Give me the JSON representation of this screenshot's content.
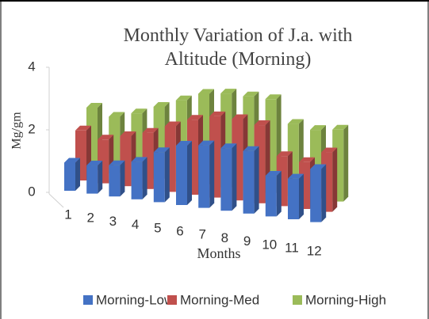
{
  "chart_data": {
    "type": "bar3d",
    "title": "Monthly Variation of J.a. with Altitude (Morning)",
    "x_label": "Months",
    "y_label": "Mg/gm",
    "categories": [
      "1",
      "2",
      "3",
      "4",
      "5",
      "6",
      "7",
      "8",
      "9",
      "10",
      "11",
      "12"
    ],
    "series": [
      {
        "name": "Morning-Low",
        "color": "#4472c4",
        "values": [
          0.9,
          0.9,
          1.0,
          1.2,
          1.6,
          1.9,
          2.0,
          2.0,
          2.0,
          1.3,
          1.3,
          1.7
        ]
      },
      {
        "name": "Morning-Med",
        "color": "#c0504d",
        "values": [
          1.6,
          1.4,
          1.6,
          1.8,
          2.1,
          2.4,
          2.6,
          2.6,
          2.5,
          1.6,
          1.5,
          1.9
        ]
      },
      {
        "name": "Morning-High",
        "color": "#9bbb59",
        "values": [
          2.0,
          1.8,
          2.0,
          2.3,
          2.6,
          2.9,
          3.0,
          3.0,
          3.0,
          2.3,
          2.2,
          2.3
        ]
      }
    ],
    "ylim": [
      0,
      4
    ],
    "yticks": [
      0,
      2,
      4
    ],
    "legend": "bottom"
  }
}
